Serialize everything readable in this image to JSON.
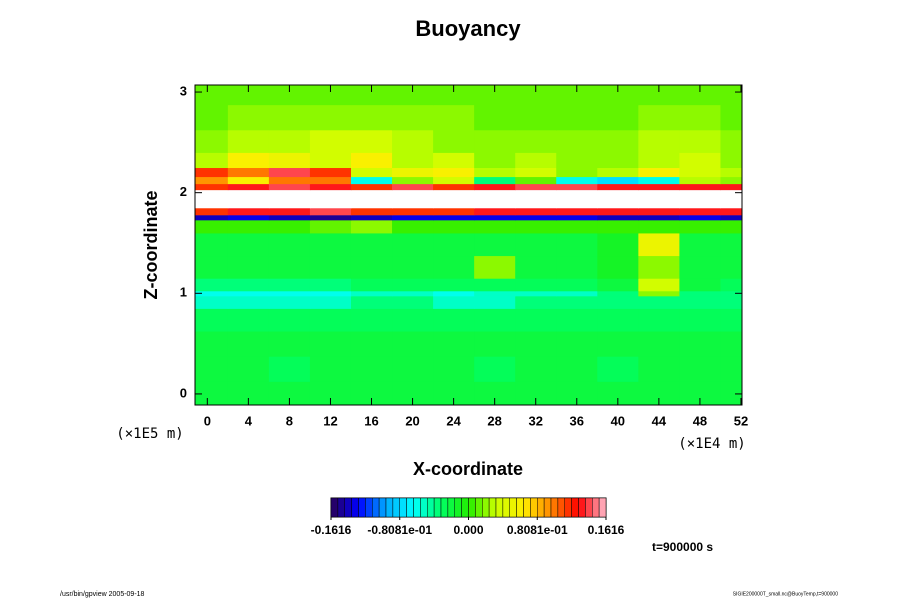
{
  "chart_data": {
    "type": "heatmap",
    "title": "Buoyancy",
    "x_label": "X-coordinate",
    "y_label": "Z-coordinate",
    "x_unit": "(×1E4 m)",
    "y_unit": "(×1E5 m)",
    "time_label": "t=900000 s",
    "footer_left": "/usr/bin/gpview 2005-09-18",
    "footer_right": "SIGIE200000T_small.nc@BuoyTemp,t=900000",
    "x": [
      0,
      4,
      8,
      12,
      16,
      20,
      24,
      28,
      32,
      36,
      40,
      44,
      48,
      52
    ],
    "y": [
      0,
      0.25,
      0.5,
      0.75,
      0.95,
      1.0,
      1.05,
      1.25,
      1.5,
      1.7,
      1.76,
      1.8,
      1.9,
      2.0,
      2.06,
      2.12,
      2.2,
      2.3,
      2.5,
      2.75,
      3.0
    ],
    "values": [
      [
        -0.02,
        -0.02,
        -0.02,
        -0.02,
        -0.02,
        -0.02,
        -0.02,
        -0.02,
        -0.02,
        -0.02,
        -0.02,
        -0.02,
        -0.02,
        -0.02
      ],
      [
        -0.02,
        -0.02,
        -0.03,
        -0.02,
        -0.02,
        -0.02,
        -0.02,
        -0.03,
        -0.02,
        -0.02,
        -0.03,
        -0.02,
        -0.02,
        -0.02
      ],
      [
        -0.02,
        -0.02,
        -0.02,
        -0.02,
        -0.02,
        -0.02,
        -0.02,
        -0.02,
        -0.02,
        -0.02,
        -0.02,
        -0.02,
        -0.02,
        -0.02
      ],
      [
        -0.03,
        -0.03,
        -0.03,
        -0.03,
        -0.03,
        -0.03,
        -0.03,
        -0.03,
        -0.03,
        -0.03,
        -0.03,
        -0.03,
        -0.03,
        -0.03
      ],
      [
        -0.05,
        -0.05,
        -0.05,
        -0.05,
        -0.04,
        -0.04,
        -0.05,
        -0.05,
        -0.04,
        -0.04,
        -0.04,
        -0.04,
        -0.04,
        -0.04
      ],
      [
        -0.06,
        -0.06,
        -0.06,
        -0.06,
        -0.05,
        -0.05,
        -0.06,
        -0.05,
        -0.05,
        -0.05,
        -0.04,
        0.02,
        -0.04,
        -0.04
      ],
      [
        -0.04,
        -0.04,
        -0.04,
        -0.04,
        -0.03,
        -0.03,
        -0.03,
        -0.03,
        -0.03,
        -0.03,
        -0.02,
        0.04,
        -0.02,
        -0.03
      ],
      [
        -0.02,
        -0.02,
        -0.02,
        -0.02,
        -0.02,
        -0.02,
        -0.02,
        0.02,
        -0.02,
        -0.02,
        -0.01,
        0.02,
        -0.02,
        -0.02
      ],
      [
        -0.02,
        -0.02,
        -0.02,
        -0.02,
        -0.02,
        -0.02,
        -0.02,
        -0.02,
        -0.02,
        -0.02,
        -0.01,
        0.05,
        -0.02,
        -0.02
      ],
      [
        0,
        0,
        0,
        0.01,
        0.02,
        0,
        0,
        0,
        0,
        0,
        0,
        0,
        0,
        0
      ],
      [
        -0.14,
        -0.13,
        -0.14,
        -0.15,
        -0.14,
        -0.13,
        -0.13,
        -0.13,
        -0.13,
        -0.13,
        -0.14,
        -0.14,
        -0.13,
        -0.14
      ],
      [
        0.12,
        0.13,
        0.13,
        0.14,
        0.12,
        0.12,
        0.12,
        0.13,
        0.13,
        0.13,
        0.13,
        0.13,
        0.13,
        0.13
      ],
      [
        0.25,
        0.25,
        0.25,
        0.25,
        0.25,
        0.25,
        0.25,
        0.25,
        0.25,
        0.25,
        0.25,
        0.25,
        0.25,
        0.25
      ],
      [
        0.25,
        0.25,
        0.25,
        0.25,
        0.25,
        0.25,
        0.25,
        0.25,
        0.25,
        0.25,
        0.25,
        0.25,
        0.25,
        0.25
      ],
      [
        0.12,
        0.13,
        0.14,
        0.13,
        0.12,
        0.14,
        0.12,
        0.13,
        0.14,
        0.14,
        0.13,
        0.13,
        0.13,
        0.13
      ],
      [
        0.09,
        0.06,
        0.1,
        0.1,
        -0.06,
        0.02,
        0.04,
        -0.04,
        0.01,
        -0.06,
        -0.08,
        -0.06,
        0.03,
        0.02
      ],
      [
        0.12,
        0.1,
        0.14,
        0.12,
        0.04,
        0.05,
        0.06,
        0.03,
        0.04,
        0.02,
        0.03,
        0.06,
        0.04,
        0.03
      ],
      [
        0.03,
        0.06,
        0.05,
        0.04,
        0.06,
        0.03,
        0.04,
        0.02,
        0.03,
        0.02,
        0.02,
        0.03,
        0.04,
        0.02
      ],
      [
        0.02,
        0.03,
        0.03,
        0.04,
        0.04,
        0.03,
        0.02,
        0.02,
        0.02,
        0.02,
        0.02,
        0.03,
        0.03,
        0.02
      ],
      [
        0.01,
        0.02,
        0.02,
        0.02,
        0.02,
        0.02,
        0.02,
        0.01,
        0.01,
        0.01,
        0.01,
        0.02,
        0.02,
        0.01
      ],
      [
        0.01,
        0.01,
        0.01,
        0.01,
        0.01,
        0.01,
        0.01,
        0.01,
        0.01,
        0.01,
        0.01,
        0.01,
        0.01,
        0.01
      ]
    ],
    "xlim": [
      -1.2,
      52.1
    ],
    "ylim": [
      -0.11,
      3.07
    ],
    "xticks": [
      0,
      4,
      8,
      12,
      16,
      20,
      24,
      28,
      32,
      36,
      40,
      44,
      48,
      52
    ],
    "yticks": [
      0,
      1,
      2,
      3
    ],
    "clim": [
      -0.1616,
      0.1616
    ],
    "colorbar_ticks": [
      -0.1616,
      {
        "value": -0.08081,
        "label": "-0.8081e-01"
      },
      {
        "value": 0,
        "label": "0.000"
      },
      {
        "value": 0.08081,
        "label": "0.8081e-01"
      },
      0.1616
    ],
    "colorbar_levels": 40,
    "colormap": [
      "#2a0055",
      "#0000ff",
      "#00aaff",
      "#00ffff",
      "#00ff66",
      "#22ee00",
      "#ccff00",
      "#ffee00",
      "#ff8800",
      "#ff0000",
      "#ffbbcc"
    ],
    "over_color": "#ffffff"
  }
}
